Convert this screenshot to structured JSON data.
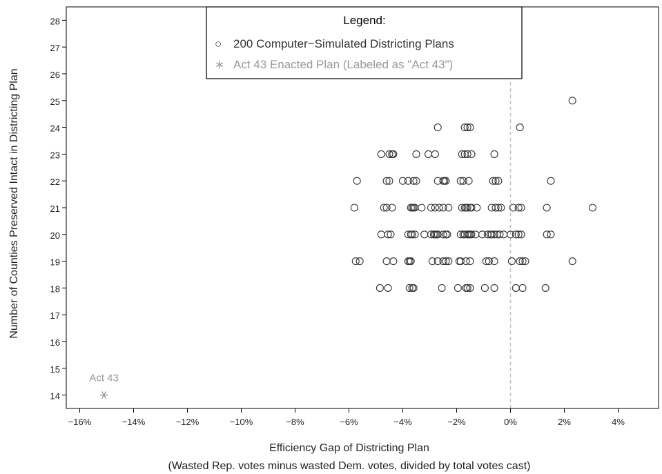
{
  "chart_data": {
    "type": "scatter",
    "xlabel": "Efficiency Gap of Districting Plan",
    "xlabel2": "(Wasted Rep. votes minus wasted Dem. votes, divided by total votes cast)",
    "ylabel": "Number of Counties Preserved Intact in Districting Plan",
    "xlim": [
      -16.5,
      5.5
    ],
    "ylim": [
      13.5,
      28.5
    ],
    "x_ticks": [
      -16,
      -14,
      -12,
      -10,
      -8,
      -6,
      -4,
      -2,
      0,
      2,
      4
    ],
    "x_tick_labels": [
      "−16%",
      "−14%",
      "−12%",
      "−10%",
      "−8%",
      "−6%",
      "−4%",
      "−2%",
      "0%",
      "2%",
      "4%"
    ],
    "y_ticks": [
      14,
      15,
      16,
      17,
      18,
      19,
      20,
      21,
      22,
      23,
      24,
      25,
      26,
      27,
      28
    ],
    "y_tick_labels": [
      "14",
      "15",
      "16",
      "17",
      "18",
      "19",
      "20",
      "21",
      "22",
      "23",
      "24",
      "25",
      "26",
      "27",
      "28"
    ],
    "reference_line": {
      "x": 0,
      "style": "dashed",
      "color": "#c0c0c0"
    },
    "legend": {
      "title": "Legend:",
      "placement": "top-center",
      "entries": [
        {
          "marker": "○",
          "label": "200 Computer−Simulated Districting Plans",
          "color": "#333333"
        },
        {
          "marker": "∗",
          "label": "Act 43 Enacted Plan (Labeled as \"Act 43\")",
          "color": "#999999"
        }
      ]
    },
    "series": [
      {
        "marker": "circle",
        "color": "#333333",
        "points": [
          [
            2.3,
            25
          ],
          [
            -2.7,
            24
          ],
          [
            -1.7,
            24
          ],
          [
            -1.6,
            24
          ],
          [
            -1.5,
            24
          ],
          [
            0.35,
            24
          ],
          [
            -4.8,
            23
          ],
          [
            -4.5,
            23
          ],
          [
            -4.4,
            23
          ],
          [
            -4.35,
            23
          ],
          [
            -3.5,
            23
          ],
          [
            -3.05,
            23
          ],
          [
            -2.8,
            23
          ],
          [
            -1.8,
            23
          ],
          [
            -1.7,
            23
          ],
          [
            -1.6,
            23
          ],
          [
            -1.45,
            23
          ],
          [
            -0.6,
            23
          ],
          [
            -5.7,
            22
          ],
          [
            -4.6,
            22
          ],
          [
            -4.5,
            22
          ],
          [
            -4.0,
            22
          ],
          [
            -3.8,
            22
          ],
          [
            -3.6,
            22
          ],
          [
            -3.5,
            22
          ],
          [
            -2.7,
            22
          ],
          [
            -2.5,
            22
          ],
          [
            -2.45,
            22
          ],
          [
            -2.4,
            22
          ],
          [
            -1.85,
            22
          ],
          [
            -1.75,
            22
          ],
          [
            -1.55,
            22
          ],
          [
            -0.65,
            22
          ],
          [
            -0.55,
            22
          ],
          [
            -0.45,
            22
          ],
          [
            1.5,
            22
          ],
          [
            -5.8,
            21
          ],
          [
            -4.7,
            21
          ],
          [
            -4.6,
            21
          ],
          [
            -4.4,
            21
          ],
          [
            -3.7,
            21
          ],
          [
            -3.65,
            21
          ],
          [
            -3.6,
            21
          ],
          [
            -3.55,
            21
          ],
          [
            -3.3,
            21
          ],
          [
            -2.95,
            21
          ],
          [
            -2.8,
            21
          ],
          [
            -2.65,
            21
          ],
          [
            -2.5,
            21
          ],
          [
            -2.3,
            21
          ],
          [
            -1.8,
            21
          ],
          [
            -1.7,
            21
          ],
          [
            -1.65,
            21
          ],
          [
            -1.6,
            21
          ],
          [
            -1.5,
            21
          ],
          [
            -1.45,
            21
          ],
          [
            -1.25,
            21
          ],
          [
            -0.7,
            21
          ],
          [
            -0.55,
            21
          ],
          [
            -0.45,
            21
          ],
          [
            -0.35,
            21
          ],
          [
            0.1,
            21
          ],
          [
            0.3,
            21
          ],
          [
            0.4,
            21
          ],
          [
            1.35,
            21
          ],
          [
            3.05,
            21
          ],
          [
            -4.8,
            20
          ],
          [
            -4.55,
            20
          ],
          [
            -4.45,
            20
          ],
          [
            -3.8,
            20
          ],
          [
            -3.7,
            20
          ],
          [
            -3.65,
            20
          ],
          [
            -3.55,
            20
          ],
          [
            -3.2,
            20
          ],
          [
            -2.95,
            20
          ],
          [
            -2.85,
            20
          ],
          [
            -2.8,
            20
          ],
          [
            -2.75,
            20
          ],
          [
            -2.7,
            20
          ],
          [
            -2.5,
            20
          ],
          [
            -2.4,
            20
          ],
          [
            -2.35,
            20
          ],
          [
            -1.85,
            20
          ],
          [
            -1.75,
            20
          ],
          [
            -1.7,
            20
          ],
          [
            -1.6,
            20
          ],
          [
            -1.55,
            20
          ],
          [
            -1.5,
            20
          ],
          [
            -1.45,
            20
          ],
          [
            -1.3,
            20
          ],
          [
            -1.05,
            20
          ],
          [
            -0.85,
            20
          ],
          [
            -0.75,
            20
          ],
          [
            -0.7,
            20
          ],
          [
            -0.6,
            20
          ],
          [
            -0.5,
            20
          ],
          [
            -0.4,
            20
          ],
          [
            -0.25,
            20
          ],
          [
            0.0,
            20
          ],
          [
            0.2,
            20
          ],
          [
            0.3,
            20
          ],
          [
            0.4,
            20
          ],
          [
            1.35,
            20
          ],
          [
            1.5,
            20
          ],
          [
            -5.75,
            19
          ],
          [
            -5.6,
            19
          ],
          [
            -4.6,
            19
          ],
          [
            -4.35,
            19
          ],
          [
            -3.8,
            19
          ],
          [
            -3.75,
            19
          ],
          [
            -3.7,
            19
          ],
          [
            -2.9,
            19
          ],
          [
            -2.7,
            19
          ],
          [
            -2.5,
            19
          ],
          [
            -2.4,
            19
          ],
          [
            -2.3,
            19
          ],
          [
            -1.9,
            19
          ],
          [
            -1.85,
            19
          ],
          [
            -1.65,
            19
          ],
          [
            -1.5,
            19
          ],
          [
            -0.9,
            19
          ],
          [
            -0.8,
            19
          ],
          [
            -0.6,
            19
          ],
          [
            0.05,
            19
          ],
          [
            0.35,
            19
          ],
          [
            0.45,
            19
          ],
          [
            0.55,
            19
          ],
          [
            2.3,
            19
          ],
          [
            -4.85,
            18
          ],
          [
            -4.55,
            18
          ],
          [
            -3.75,
            18
          ],
          [
            -3.65,
            18
          ],
          [
            -3.6,
            18
          ],
          [
            -2.55,
            18
          ],
          [
            -1.95,
            18
          ],
          [
            -1.65,
            18
          ],
          [
            -1.6,
            18
          ],
          [
            -1.5,
            18
          ],
          [
            -0.95,
            18
          ],
          [
            -0.6,
            18
          ],
          [
            0.2,
            18
          ],
          [
            0.45,
            18
          ],
          [
            1.3,
            18
          ]
        ]
      },
      {
        "marker": "asterisk",
        "color": "#999999",
        "points": [
          [
            -15.1,
            14
          ]
        ],
        "annotation": "Act 43"
      }
    ]
  }
}
